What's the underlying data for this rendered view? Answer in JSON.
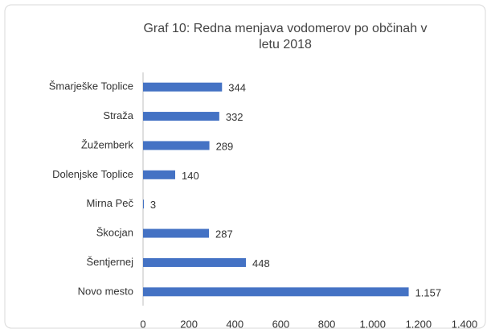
{
  "chart_data": {
    "type": "bar",
    "orientation": "horizontal",
    "title": "Graf 10: Redna menjava vodomerov po občinah v letu 2018",
    "categories": [
      "Šmarješke Toplice",
      "Straža",
      "Žužemberk",
      "Dolenjske Toplice",
      "Mirna Peč",
      "Škocjan",
      "Šentjernej",
      "Novo mesto"
    ],
    "values": [
      344,
      332,
      289,
      140,
      3,
      287,
      448,
      1157
    ],
    "value_labels": [
      "344",
      "332",
      "289",
      "140",
      "3",
      "287",
      "448",
      "1.157"
    ],
    "color": "#4472c4",
    "xlim": [
      0,
      1400
    ],
    "xticks": [
      0,
      200,
      400,
      600,
      800,
      {
        "value": 1000,
        "label": "1.000"
      },
      {
        "value": 1200,
        "label": "1.200"
      },
      {
        "value": 1400,
        "label": "1.400"
      }
    ],
    "grid": false
  }
}
